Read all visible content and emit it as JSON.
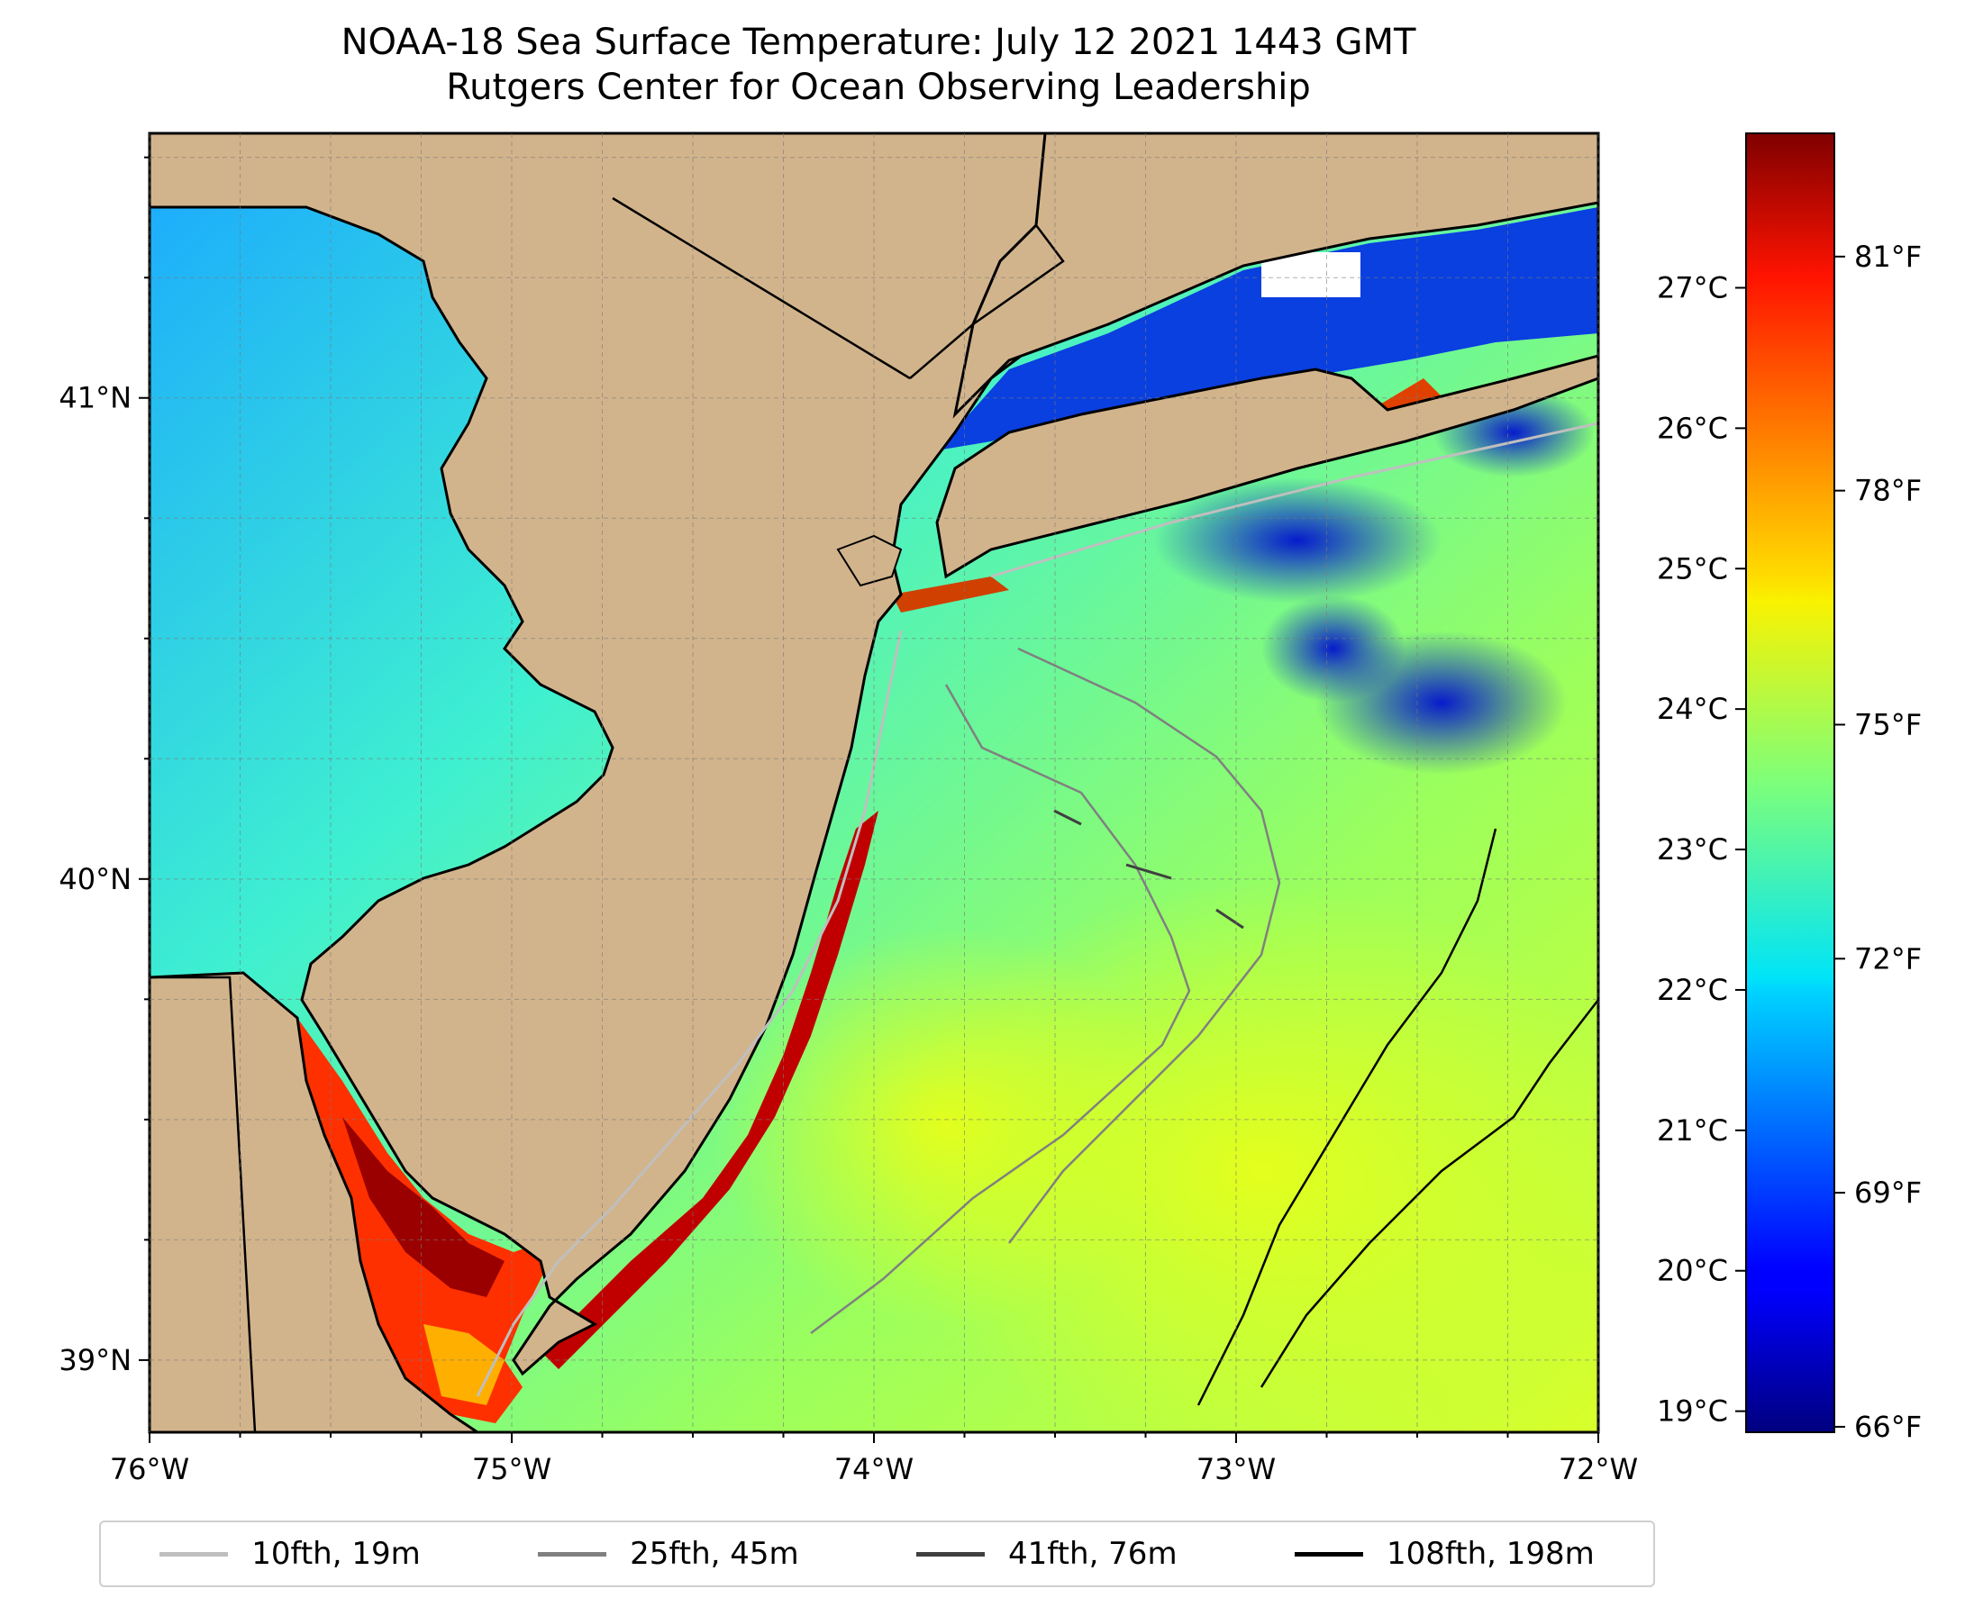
{
  "title": {
    "line1": "NOAA-18 Sea Surface Temperature: July 12 2021 1443 GMT",
    "line2": "Rutgers Center for Ocean Observing Leadership"
  },
  "map": {
    "lon_range": [
      -76,
      -72
    ],
    "lat_range": [
      38.85,
      41.55
    ],
    "lon_labels": [
      {
        "lon": -76,
        "text": "76°W"
      },
      {
        "lon": -75,
        "text": "75°W"
      },
      {
        "lon": -74,
        "text": "74°W"
      },
      {
        "lon": -73,
        "text": "73°W"
      },
      {
        "lon": -72,
        "text": "72°W"
      }
    ],
    "lat_labels": [
      {
        "lat": 41,
        "text": "41°N"
      },
      {
        "lat": 40,
        "text": "40°N"
      },
      {
        "lat": 39,
        "text": "39°N"
      }
    ],
    "land_color": "#d2b48c",
    "grid": true
  },
  "colorbar": {
    "colormap": "jet",
    "celsius_range": [
      18.85,
      28.1
    ],
    "celsius_labels": [
      {
        "v": 19,
        "text": "19°C"
      },
      {
        "v": 20,
        "text": "20°C"
      },
      {
        "v": 21,
        "text": "21°C"
      },
      {
        "v": 22,
        "text": "22°C"
      },
      {
        "v": 23,
        "text": "23°C"
      },
      {
        "v": 24,
        "text": "24°C"
      },
      {
        "v": 25,
        "text": "25°C"
      },
      {
        "v": 26,
        "text": "26°C"
      },
      {
        "v": 27,
        "text": "27°C"
      }
    ],
    "fahrenheit_labels": [
      {
        "v": 66,
        "text": "66°F"
      },
      {
        "v": 69,
        "text": "69°F"
      },
      {
        "v": 72,
        "text": "72°F"
      },
      {
        "v": 75,
        "text": "75°F"
      },
      {
        "v": 78,
        "text": "78°F"
      },
      {
        "v": 81,
        "text": "81°F"
      }
    ]
  },
  "legend": [
    {
      "label": "10fth, 19m",
      "color": "#bfbfbf"
    },
    {
      "label": "25fth, 45m",
      "color": "#808080"
    },
    {
      "label": "41fth, 76m",
      "color": "#404040"
    },
    {
      "label": "108fth, 198m",
      "color": "#000000"
    }
  ]
}
